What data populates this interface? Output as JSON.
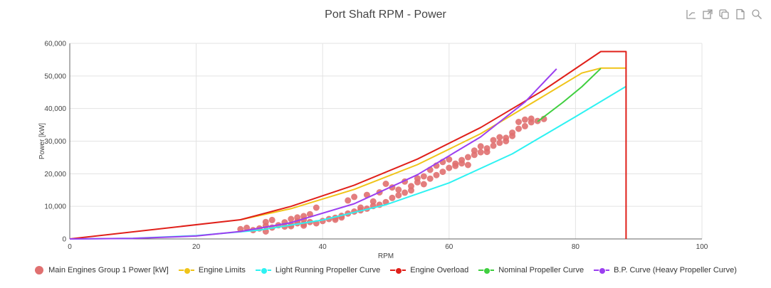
{
  "title": "Port Shaft RPM - Power",
  "toolbar": [
    "line-chart-icon",
    "open-external-icon",
    "copy-icon",
    "document-icon",
    "search-icon"
  ],
  "chart_data": {
    "type": "scatter",
    "xlabel": "RPM",
    "ylabel": "Power [kW]",
    "xlim": [
      0,
      100
    ],
    "ylim": [
      0,
      60000
    ],
    "xticks": [
      "0",
      "20",
      "40",
      "60",
      "80",
      "100"
    ],
    "yticks": [
      "0",
      "10,000",
      "20,000",
      "30,000",
      "40,000",
      "50,000",
      "60,000"
    ],
    "grid": true,
    "legend_position": "bottom",
    "series": [
      {
        "name": "Main Engines Group 1 Power [kW]",
        "kind": "scatter",
        "color": "#e07070",
        "points": [
          [
            27,
            3000
          ],
          [
            28,
            3400
          ],
          [
            29,
            2700
          ],
          [
            30,
            3200
          ],
          [
            31,
            2300
          ],
          [
            31,
            4000
          ],
          [
            31,
            5200
          ],
          [
            32,
            3500
          ],
          [
            32,
            5800
          ],
          [
            33,
            4200
          ],
          [
            34,
            3800
          ],
          [
            34,
            5100
          ],
          [
            35,
            4400
          ],
          [
            35,
            6100
          ],
          [
            35,
            3900
          ],
          [
            36,
            4800
          ],
          [
            36,
            6600
          ],
          [
            36,
            5400
          ],
          [
            37,
            4100
          ],
          [
            37,
            5900
          ],
          [
            37,
            7000
          ],
          [
            37,
            4600
          ],
          [
            38,
            5200
          ],
          [
            38,
            7600
          ],
          [
            39,
            4800
          ],
          [
            39,
            9600
          ],
          [
            40,
            5500
          ],
          [
            41,
            6100
          ],
          [
            42,
            6500
          ],
          [
            42,
            5900
          ],
          [
            43,
            7100
          ],
          [
            43,
            6600
          ],
          [
            44,
            7800
          ],
          [
            44,
            11800
          ],
          [
            45,
            8400
          ],
          [
            45,
            12900
          ],
          [
            46,
            8800
          ],
          [
            46,
            9600
          ],
          [
            47,
            9300
          ],
          [
            47,
            13500
          ],
          [
            48,
            10100
          ],
          [
            48,
            11500
          ],
          [
            49,
            10500
          ],
          [
            49,
            14300
          ],
          [
            50,
            11300
          ],
          [
            50,
            16900
          ],
          [
            51,
            12600
          ],
          [
            51,
            15800
          ],
          [
            52,
            13400
          ],
          [
            52,
            15100
          ],
          [
            53,
            14200
          ],
          [
            53,
            17600
          ],
          [
            54,
            16200
          ],
          [
            54,
            14900
          ],
          [
            55,
            17400
          ],
          [
            55,
            18600
          ],
          [
            56,
            16800
          ],
          [
            56,
            19200
          ],
          [
            57,
            18500
          ],
          [
            57,
            21200
          ],
          [
            58,
            19600
          ],
          [
            58,
            22500
          ],
          [
            59,
            20600
          ],
          [
            59,
            23600
          ],
          [
            60,
            21800
          ],
          [
            60,
            24400
          ],
          [
            61,
            23100
          ],
          [
            61,
            22400
          ],
          [
            62,
            24200
          ],
          [
            62,
            23200
          ],
          [
            63,
            25100
          ],
          [
            63,
            22700
          ],
          [
            64,
            25800
          ],
          [
            64,
            27100
          ],
          [
            65,
            26600
          ],
          [
            65,
            28400
          ],
          [
            66,
            27800
          ],
          [
            66,
            26700
          ],
          [
            67,
            28600
          ],
          [
            67,
            30300
          ],
          [
            68,
            29500
          ],
          [
            68,
            31200
          ],
          [
            69,
            31000
          ],
          [
            69,
            30000
          ],
          [
            70,
            32600
          ],
          [
            70,
            31600
          ],
          [
            71,
            33800
          ],
          [
            71,
            35900
          ],
          [
            72,
            34600
          ],
          [
            72,
            36600
          ],
          [
            73,
            35800
          ],
          [
            73,
            36900
          ],
          [
            74,
            36200
          ],
          [
            75,
            36800
          ]
        ]
      },
      {
        "name": "Engine Limits",
        "kind": "line",
        "color": "#f0c419",
        "points": [
          [
            27,
            5900
          ],
          [
            35,
            9300
          ],
          [
            45,
            15200
          ],
          [
            55,
            22800
          ],
          [
            65,
            32300
          ],
          [
            75,
            43900
          ],
          [
            81,
            50900
          ],
          [
            84,
            52400
          ],
          [
            88,
            52400
          ]
        ]
      },
      {
        "name": "Light Running Propeller Curve",
        "kind": "line",
        "color": "#2ef2f2",
        "points": [
          [
            0,
            0
          ],
          [
            10,
            200
          ],
          [
            20,
            1000
          ],
          [
            30,
            2700
          ],
          [
            40,
            5800
          ],
          [
            50,
            10500
          ],
          [
            60,
            17200
          ],
          [
            70,
            26100
          ],
          [
            80,
            37500
          ],
          [
            88,
            46800
          ]
        ]
      },
      {
        "name": "Engine Overload",
        "kind": "line",
        "color": "#e0201a",
        "points": [
          [
            0,
            0
          ],
          [
            27,
            5900
          ],
          [
            35,
            10000
          ],
          [
            45,
            16500
          ],
          [
            55,
            24500
          ],
          [
            65,
            34200
          ],
          [
            75,
            45700
          ],
          [
            84,
            57500
          ],
          [
            88,
            57500
          ],
          [
            88,
            0
          ]
        ]
      },
      {
        "name": "Nominal Propeller Curve",
        "kind": "line",
        "color": "#3fcf3f",
        "points": [
          [
            74,
            36000
          ],
          [
            78,
            41900
          ],
          [
            81,
            46700
          ],
          [
            84,
            52300
          ]
        ]
      },
      {
        "name": "B.P. Curve (Heavy Propeller Curve)",
        "kind": "line",
        "color": "#9b3ff0",
        "points": [
          [
            0,
            0
          ],
          [
            10,
            150
          ],
          [
            20,
            900
          ],
          [
            27,
            2300
          ],
          [
            35,
            5000
          ],
          [
            45,
            10800
          ],
          [
            55,
            19700
          ],
          [
            65,
            31300
          ],
          [
            72,
            42000
          ],
          [
            77,
            52200
          ]
        ]
      }
    ]
  }
}
